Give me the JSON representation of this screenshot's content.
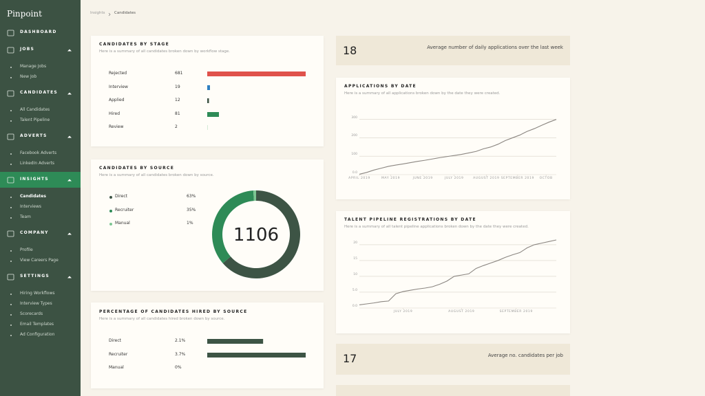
{
  "sidebar": {
    "logo": "Pinpoint",
    "sections": [
      {
        "title": "DASHBOARD",
        "items": []
      },
      {
        "title": "JOBS",
        "items": [
          "Manage Jobs",
          "New Job"
        ]
      },
      {
        "title": "CANDIDATES",
        "items": [
          "All Candidates",
          "Talent Pipeline"
        ]
      },
      {
        "title": "ADVERTS",
        "items": [
          "Facebook Adverts",
          "LinkedIn Adverts"
        ]
      },
      {
        "title": "INSIGHTS",
        "items": [
          "Candidates",
          "Interviews",
          "Team"
        ]
      },
      {
        "title": "COMPANY",
        "items": [
          "Profile",
          "View Careers Page"
        ]
      },
      {
        "title": "SETTINGS",
        "items": [
          "Hiring Workflows",
          "Interview Types",
          "Scorecards",
          "Email Templates",
          "Ad Configuration"
        ]
      }
    ],
    "active": {
      "section": 4,
      "item": 0
    }
  },
  "breadcrumb": [
    "Insights",
    "Candidates"
  ],
  "by_stage": {
    "type": "bar",
    "title": "CANDIDATES BY STAGE",
    "subtitle": "Here is a summary of all candidates broken down by workflow stage.",
    "categories": [
      "Rejected",
      "Interview",
      "Applied",
      "Hired",
      "Review"
    ],
    "values": [
      681,
      19,
      12,
      81,
      2
    ],
    "colors": [
      "#e0524c",
      "#2f7fc1",
      "#3d5445",
      "#2e8b57",
      "#9acfa8"
    ]
  },
  "by_source": {
    "type": "pie",
    "title": "CANDIDATES BY SOURCE",
    "subtitle": "Here is a summary of all candidates broken down by source.",
    "categories": [
      "Direct",
      "Recruiter",
      "Manual"
    ],
    "values": [
      63,
      35,
      1
    ],
    "value_labels": [
      "63%",
      "35%",
      "1%"
    ],
    "colors": [
      "#3d5445",
      "#2e8b57",
      "#7cc592"
    ],
    "total": 1106
  },
  "hired_by_source": {
    "type": "bar",
    "title": "PERCENTAGE OF CANDIDATES HIRED BY SOURCE",
    "subtitle": "Here is a summary of all candidates hired broken down by source.",
    "categories": [
      "Direct",
      "Recruiter",
      "Manual"
    ],
    "values": [
      2.1,
      3.7,
      0
    ],
    "value_labels": [
      "2.1%",
      "3.7%",
      "0%"
    ],
    "color": "#3d5445"
  },
  "stat_applications": {
    "value": 18,
    "label": "Average number of daily applications over the last week"
  },
  "applications_chart": {
    "type": "line",
    "title": "APPLICATIONS BY DATE",
    "subtitle": "Here is a summary of all applications broken down by the date they were created.",
    "values": [
      2,
      12,
      25,
      35,
      45,
      52,
      58,
      65,
      72,
      78,
      85,
      92,
      98,
      104,
      110,
      118,
      126,
      140,
      150,
      165,
      185,
      200,
      215,
      235,
      250,
      268,
      285,
      300
    ],
    "xlim": [
      0,
      27
    ],
    "xticks": [
      {
        "value": 0,
        "label": "APRIL 2019"
      },
      {
        "value": 4.3,
        "label": "MAY 2019"
      },
      {
        "value": 8.7,
        "label": "JUNE 2019"
      },
      {
        "value": 13,
        "label": "JULY 2019"
      },
      {
        "value": 17.4,
        "label": "AUGUST 2019"
      },
      {
        "value": 21.7,
        "label": "SEPTEMBER 2019"
      },
      {
        "value": 25.6,
        "label": "OCTOB"
      }
    ],
    "ylim": [
      0,
      310
    ],
    "yticks": [
      {
        "value": 0,
        "label": "0.0"
      },
      100,
      200,
      300
    ],
    "color": "#8a8580"
  },
  "talent_chart": {
    "type": "line",
    "title": "TALENT PIPELINE REGISTRATIONS BY DATE",
    "subtitle": "Here is a summary of all talent pipeline applications broken down by the date they were created.",
    "values": [
      1,
      1.3,
      1.6,
      2,
      2.2,
      4.5,
      5.2,
      5.6,
      6,
      6.3,
      6.7,
      7.5,
      8.5,
      10,
      10.4,
      10.8,
      12.5,
      13.4,
      14.2,
      15,
      16,
      16.8,
      17.5,
      19,
      20,
      20.5,
      21,
      21.5
    ],
    "xlim": [
      0,
      27
    ],
    "xticks": [
      {
        "value": 6,
        "label": "JULY 2019"
      },
      {
        "value": 14,
        "label": "AUGUST 2019"
      },
      {
        "value": 21.5,
        "label": "SEPTEMBER 2019"
      }
    ],
    "ylim": [
      0,
      21.5
    ],
    "yticks": [
      {
        "value": 0,
        "label": "0.0"
      },
      {
        "value": 5,
        "label": "5.0"
      },
      10,
      15,
      20
    ],
    "color": "#8a8580"
  },
  "stat_candidates": {
    "value": 17,
    "label": "Average no. candidates per job"
  }
}
